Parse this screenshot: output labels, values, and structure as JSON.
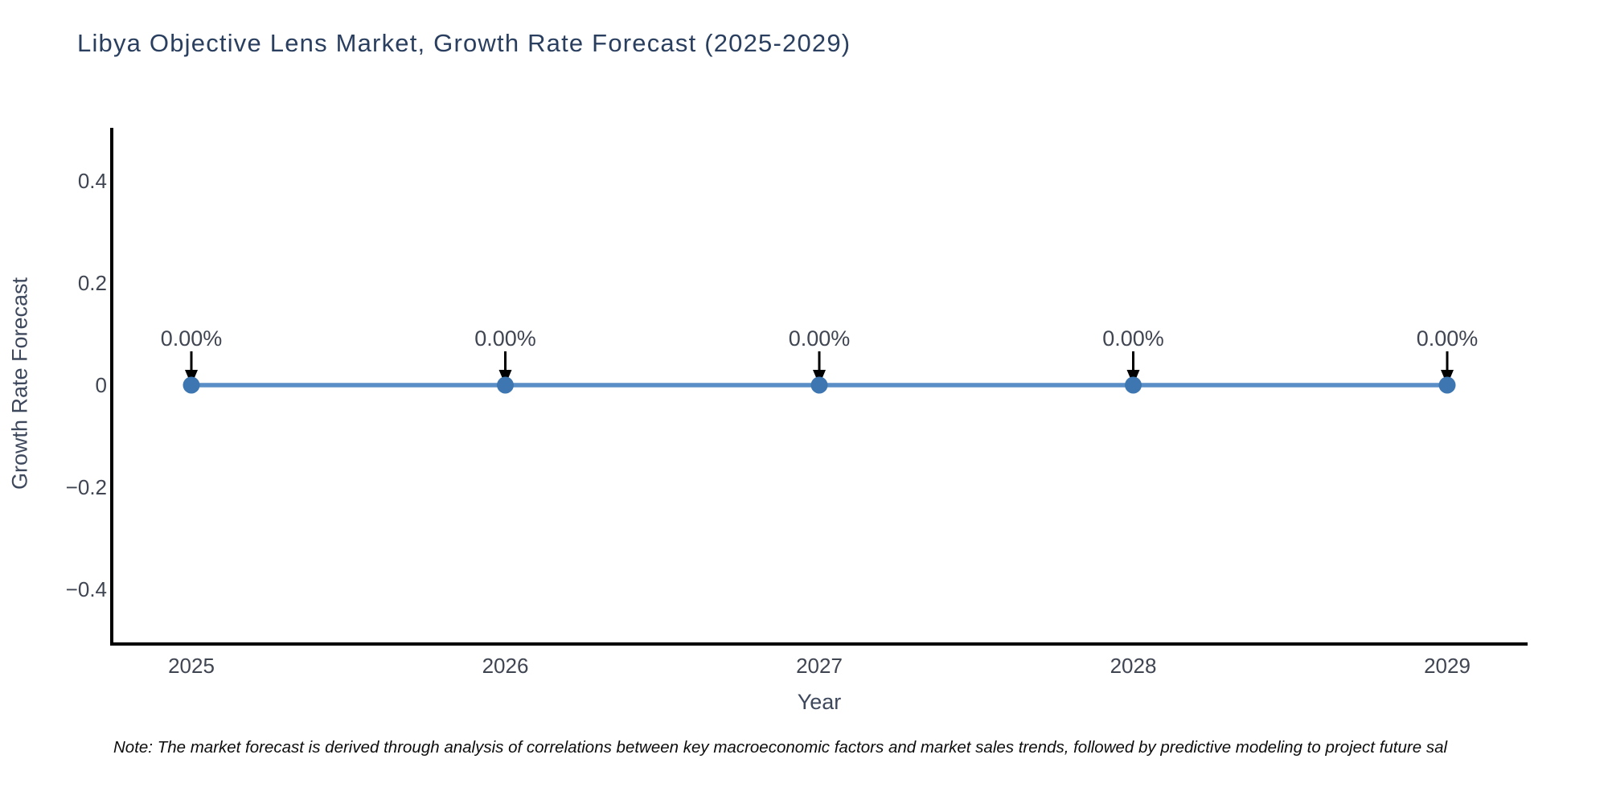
{
  "note": "Note: The market forecast is derived through analysis of correlations between key macroeconomic factors and market sales trends, followed by predictive modeling to project future sal",
  "chart_data": {
    "type": "line",
    "title": "Libya Objective Lens Market, Growth Rate Forecast (2025-2029)",
    "xlabel": "Year",
    "ylabel": "Growth Rate Forecast",
    "x": [
      2025,
      2026,
      2027,
      2028,
      2029
    ],
    "series": [
      {
        "name": "Growth Rate Forecast",
        "values": [
          0,
          0,
          0,
          0,
          0
        ]
      }
    ],
    "point_labels": [
      "0.00%",
      "0.00%",
      "0.00%",
      "0.00%",
      "0.00%"
    ],
    "xticks": [
      "2025",
      "2026",
      "2027",
      "2028",
      "2029"
    ],
    "yticks": [
      0.4,
      0.2,
      0,
      -0.2,
      -0.4
    ],
    "ytick_labels": [
      "0.4",
      "0.2",
      "0",
      "−0.2",
      "−0.4"
    ],
    "xlim": [
      2024.75,
      2029.26
    ],
    "ylim": [
      -0.51,
      0.5
    ],
    "grid": false,
    "legend": false,
    "marker_style": "circle",
    "annotation_arrows": true,
    "colors": {
      "line": "#5a8ec6",
      "marker": "#3d76b0",
      "axis": "#000000",
      "arrow": "#000000",
      "title": "#2a3f5f",
      "tick_text": "#404552",
      "annotation_text": "#404552",
      "background": "#ffffff"
    }
  }
}
